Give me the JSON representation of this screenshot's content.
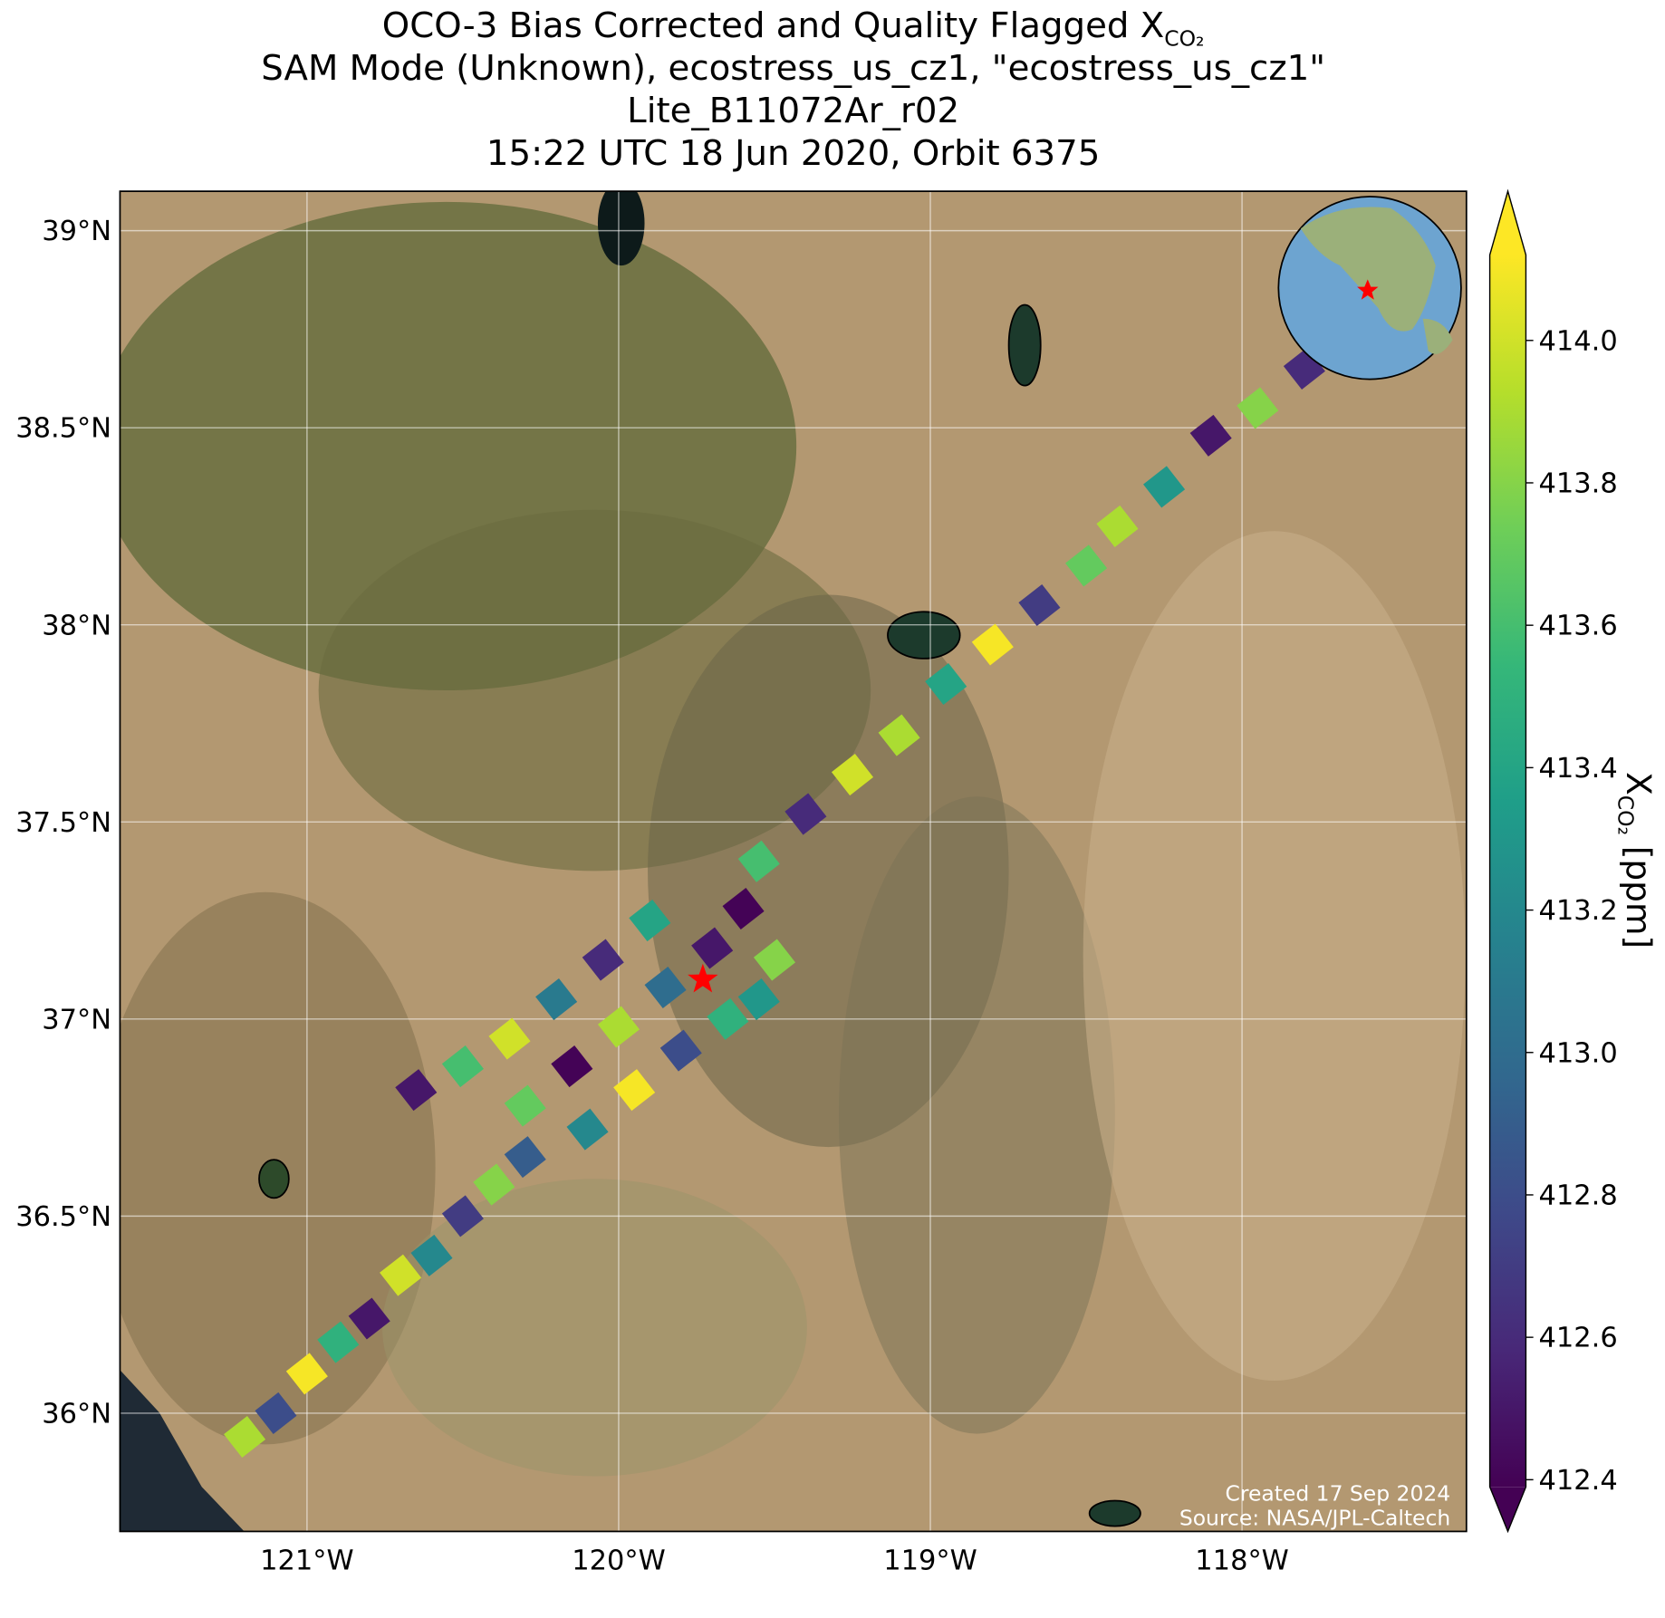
{
  "chart_data": {
    "type": "map",
    "title_lines": [
      "OCO-3 Bias Corrected and Quality Flagged X",
      "SAM Mode (Unknown), ecostress_us_cz1, \"ecostress_us_cz1\"",
      "Lite_B11072Ar_r02",
      "15:22 UTC 18 Jun 2020, Orbit 6375"
    ],
    "title_subscript": "CO₂",
    "xlim": [
      -121.6,
      -117.28
    ],
    "ylim": [
      35.7,
      39.1
    ],
    "xticks": [
      {
        "value": -121,
        "label": "121°W"
      },
      {
        "value": -120,
        "label": "120°W"
      },
      {
        "value": -119,
        "label": "119°W"
      },
      {
        "value": -118,
        "label": "118°W"
      }
    ],
    "yticks": [
      {
        "value": 36,
        "label": "36°N"
      },
      {
        "value": 36.5,
        "label": "36.5°N"
      },
      {
        "value": 37,
        "label": "37°N"
      },
      {
        "value": 37.5,
        "label": "37.5°N"
      },
      {
        "value": 38,
        "label": "38°N"
      },
      {
        "value": 38.5,
        "label": "38.5°N"
      },
      {
        "value": 39,
        "label": "39°N"
      }
    ],
    "grid": true,
    "colormap": "viridis",
    "clim": [
      412.39,
      414.12
    ],
    "cticks": [
      {
        "value": 412.4,
        "label": "412.4"
      },
      412.6,
      412.8,
      {
        "value": 413,
        "label": "413.0"
      },
      413.2,
      413.4,
      413.6,
      413.8,
      {
        "value": 414,
        "label": "414.0"
      }
    ],
    "colorbar_label": {
      "main": "X",
      "sub": "CO₂",
      "unit": "[ppm]"
    },
    "soundings": {
      "lon": [
        -121.2,
        -121.1,
        -121.0,
        -120.9,
        -120.8,
        -120.7,
        -120.6,
        -120.5,
        -120.4,
        -120.3,
        -120.65,
        -120.5,
        -120.35,
        -120.2,
        -120.05,
        -119.9,
        -120.3,
        -120.15,
        -120.0,
        -119.85,
        -119.7,
        -119.55,
        -119.95,
        -119.8,
        -119.65,
        -119.6,
        -120.1,
        -119.5,
        -119.55,
        -119.4,
        -119.25,
        -119.1,
        -118.95,
        -118.8,
        -118.65,
        -118.5,
        -118.4,
        -118.25,
        -118.1,
        -117.95,
        -117.8
      ],
      "lat": [
        35.94,
        36.0,
        36.1,
        36.18,
        36.24,
        36.35,
        36.4,
        36.5,
        36.58,
        36.65,
        36.82,
        36.88,
        36.95,
        37.05,
        37.15,
        37.25,
        36.78,
        36.88,
        36.98,
        37.08,
        37.18,
        37.05,
        36.82,
        36.92,
        37.0,
        37.28,
        36.72,
        37.15,
        37.4,
        37.52,
        37.62,
        37.72,
        37.85,
        37.95,
        38.05,
        38.15,
        38.25,
        38.35,
        38.48,
        38.55,
        38.65
      ],
      "values": [
        413.9,
        412.8,
        414.1,
        413.5,
        412.5,
        414.0,
        413.2,
        412.7,
        413.8,
        412.9,
        412.5,
        413.6,
        414.0,
        413.1,
        412.6,
        413.4,
        413.7,
        412.4,
        413.9,
        413.0,
        412.5,
        413.3,
        414.1,
        412.8,
        413.5,
        412.4,
        413.2,
        413.8,
        413.6,
        412.6,
        414.0,
        413.9,
        413.4,
        414.1,
        412.7,
        413.7,
        413.9,
        413.3,
        412.5,
        413.8,
        412.6
      ]
    },
    "target": {
      "lon": -119.73,
      "lat": 37.1,
      "color": "#ff0000"
    },
    "credits": [
      "Created 17 Sep 2024",
      "Source: NASA/JPL-Caltech"
    ]
  }
}
